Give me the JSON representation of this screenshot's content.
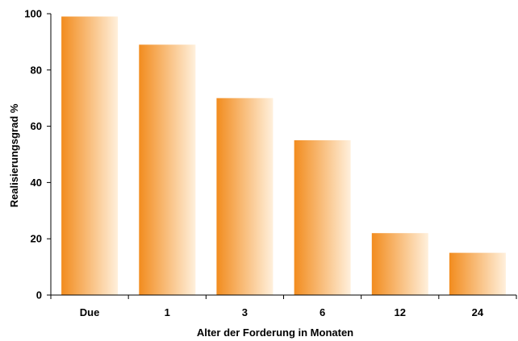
{
  "chart_data": {
    "type": "bar",
    "categories": [
      "Due",
      "1",
      "3",
      "6",
      "12",
      "24"
    ],
    "values": [
      99,
      89,
      70,
      55,
      22,
      15
    ],
    "title": "",
    "xlabel": "Alter der Forderung in Monaten",
    "ylabel": "Realisierungsgrad %",
    "ylim": [
      0,
      100
    ],
    "yticks": [
      "0",
      "20",
      "40",
      "60",
      "80",
      "100"
    ],
    "grid": false,
    "colors": {
      "bar_start": "#F28C1E",
      "bar_end": "#FFF0DC"
    }
  }
}
